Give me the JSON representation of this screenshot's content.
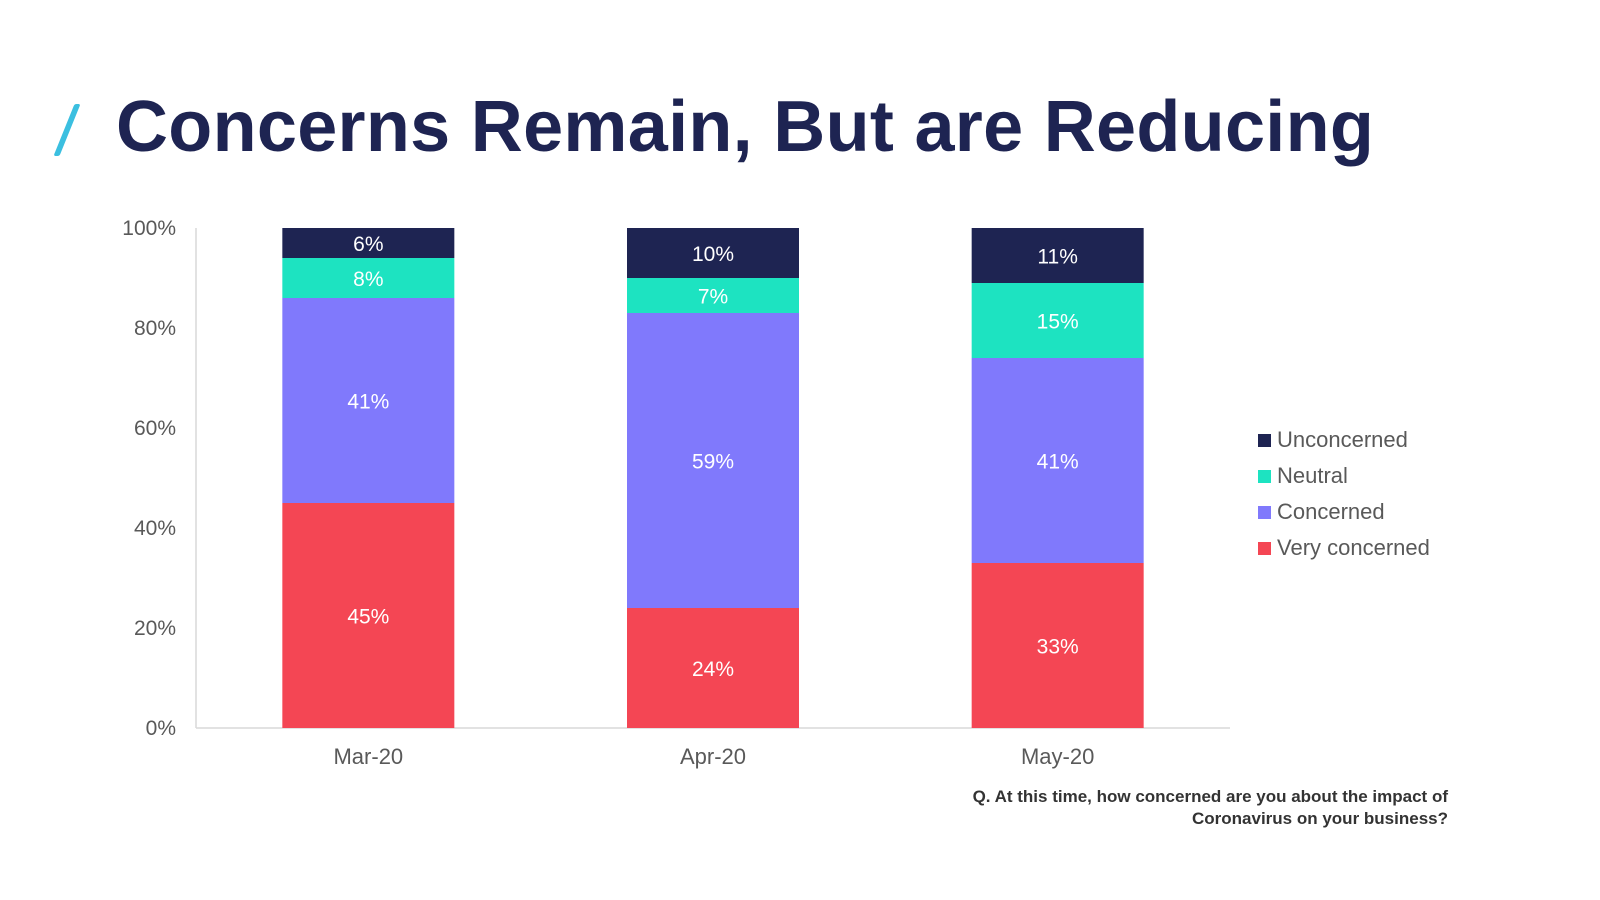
{
  "title": "Concerns Remain, But are Reducing",
  "footnote": "Q. At this time, how concerned are you about the impact of Coronavirus on your business?",
  "chart_data": {
    "type": "bar",
    "stacked": true,
    "categories": [
      "Mar-20",
      "Apr-20",
      "May-20"
    ],
    "series": [
      {
        "name": "Very concerned",
        "color": "#f44654",
        "values": [
          45,
          24,
          33
        ]
      },
      {
        "name": "Concerned",
        "color": "#8079fc",
        "values": [
          41,
          59,
          41
        ]
      },
      {
        "name": "Neutral",
        "color": "#1de3c1",
        "values": [
          8,
          7,
          15
        ]
      },
      {
        "name": "Unconcerned",
        "color": "#1e2452",
        "values": [
          6,
          10,
          11
        ]
      }
    ],
    "legend_order": [
      "Unconcerned",
      "Neutral",
      "Concerned",
      "Very concerned"
    ],
    "ylim": [
      0,
      100
    ],
    "yticks": [
      0,
      20,
      40,
      60,
      80,
      100
    ],
    "ytick_labels": [
      "0%",
      "20%",
      "40%",
      "60%",
      "80%",
      "100%"
    ],
    "value_suffix": "%",
    "legend_position": "right",
    "grid": false
  }
}
